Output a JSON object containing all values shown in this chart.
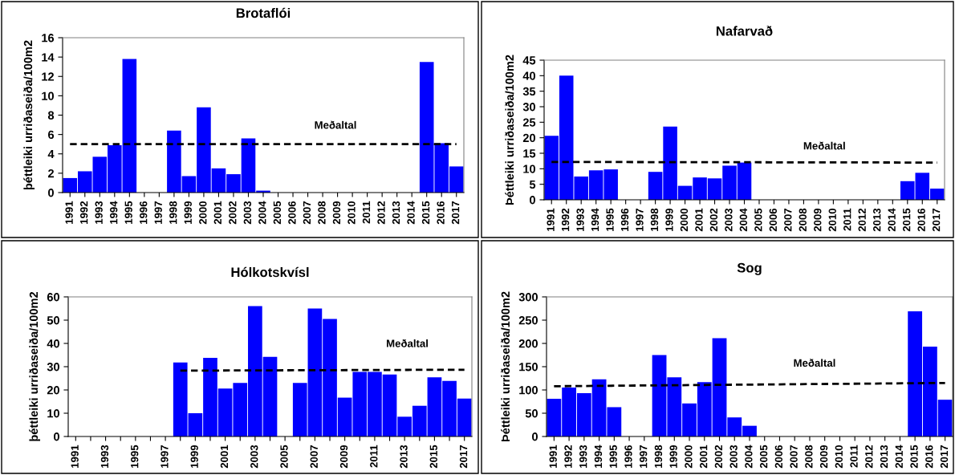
{
  "chart_data": [
    {
      "type": "bar",
      "title": "Brotaflói",
      "ylabel": "þéttleiki urriðaseiða/100m2",
      "categories": [
        "1991",
        "1992",
        "1993",
        "1994",
        "1995",
        "1996",
        "1997",
        "1998",
        "1999",
        "2000",
        "2001",
        "2002",
        "2003",
        "2004",
        "2005",
        "2006",
        "2007",
        "2008",
        "2009",
        "2010",
        "2011",
        "2012",
        "2013",
        "2014",
        "2015",
        "2016",
        "2017"
      ],
      "series": [
        {
          "color": "#0000ff",
          "values": [
            1.5,
            2.2,
            3.7,
            4.9,
            13.8,
            null,
            null,
            6.4,
            1.7,
            8.8,
            2.5,
            1.9,
            5.6,
            0.2,
            null,
            null,
            null,
            null,
            null,
            null,
            null,
            null,
            null,
            null,
            13.5,
            5.1,
            2.7
          ]
        },
        {
          "type": "line",
          "color": "#000000",
          "line_style": "dashed",
          "values": [
            5,
            null,
            null,
            null,
            null,
            null,
            null,
            null,
            null,
            null,
            null,
            null,
            null,
            null,
            null,
            null,
            null,
            null,
            null,
            null,
            null,
            null,
            null,
            null,
            null,
            null,
            5
          ]
        }
      ],
      "ylim": [
        0,
        16
      ],
      "yticks": [
        0,
        2,
        4,
        6,
        8,
        10,
        12,
        14,
        16
      ],
      "grid": false,
      "annotations": [
        "Meðaltal"
      ]
    },
    {
      "type": "bar",
      "title": "Nafarvað",
      "ylabel": "Þéttleiki urriðaseiða/100m2",
      "categories": [
        "1991",
        "1992",
        "1993",
        "1994",
        "1995",
        "1996",
        "1997",
        "1998",
        "1999",
        "2000",
        "2001",
        "2002",
        "2003",
        "2004",
        "2005",
        "2006",
        "2007",
        "2008",
        "2009",
        "2010",
        "2011",
        "2012",
        "2013",
        "2014",
        "2015",
        "2016",
        "2017"
      ],
      "series": [
        {
          "color": "#0000ff",
          "values": [
            20.6,
            40,
            7.5,
            9.5,
            9.8,
            null,
            null,
            9,
            23.6,
            4.5,
            7.2,
            6.9,
            11,
            12,
            null,
            null,
            null,
            null,
            null,
            null,
            null,
            null,
            null,
            null,
            6,
            8.7,
            3.6
          ]
        },
        {
          "type": "line",
          "color": "#000000",
          "line_style": "dashed",
          "values": [
            12.2,
            null,
            null,
            null,
            null,
            null,
            null,
            null,
            null,
            null,
            null,
            null,
            null,
            null,
            null,
            null,
            null,
            null,
            null,
            null,
            null,
            null,
            null,
            null,
            null,
            null,
            12
          ]
        }
      ],
      "ylim": [
        0,
        45
      ],
      "yticks": [
        0,
        5,
        10,
        15,
        20,
        25,
        30,
        35,
        40,
        45
      ],
      "grid": false,
      "annotations": [
        "Meðaltal"
      ]
    },
    {
      "type": "bar",
      "title": "Hólkotskvísl",
      "ylabel": "þéttleiki urriðaseiða/100m2",
      "categories": [
        "1991",
        null,
        "1993",
        null,
        "1995",
        null,
        "1997",
        null,
        "1999",
        null,
        "2001",
        null,
        "2003",
        null,
        "2005",
        null,
        "2007",
        null,
        "2009",
        null,
        "2011",
        null,
        "2013",
        null,
        "2015",
        null,
        "2017"
      ],
      "series": [
        {
          "color": "#0000ff",
          "values": [
            null,
            null,
            null,
            null,
            null,
            null,
            null,
            31.8,
            10,
            33.8,
            20.6,
            23,
            56,
            34.2,
            null,
            23,
            55,
            50.5,
            16.7,
            27.8,
            27.8,
            26.6,
            8.5,
            13.2,
            25.4,
            23.9,
            16.3
          ]
        },
        {
          "type": "line",
          "color": "#000000",
          "line_style": "dashed",
          "values": [
            null,
            null,
            null,
            null,
            null,
            null,
            null,
            28.3,
            null,
            null,
            null,
            null,
            null,
            null,
            null,
            null,
            null,
            null,
            null,
            null,
            null,
            null,
            null,
            null,
            null,
            null,
            28.7
          ]
        }
      ],
      "ylim": [
        0,
        60
      ],
      "yticks": [
        0,
        10,
        20,
        30,
        40,
        50,
        60
      ],
      "grid": false,
      "annotations": [
        "Meðaltal"
      ]
    },
    {
      "type": "bar",
      "title": "Sog",
      "ylabel": "Þéttleiki urriðaseiða/100m2",
      "categories": [
        "1991",
        "1992",
        "1993",
        "1994",
        "1995",
        "1996",
        "1997",
        "1998",
        "1999",
        "2000",
        "2001",
        "2002",
        "2003",
        "2004",
        "2005",
        "2006",
        "2007",
        "2008",
        "2009",
        "2010",
        "2011",
        "2012",
        "2013",
        "2014",
        "2015",
        "2016",
        "2017"
      ],
      "series": [
        {
          "color": "#0000ff",
          "values": [
            81,
            105,
            93,
            123,
            63,
            null,
            null,
            175,
            127,
            71,
            117,
            211,
            41,
            23,
            null,
            null,
            null,
            null,
            null,
            null,
            null,
            null,
            null,
            null,
            269,
            193,
            79
          ]
        },
        {
          "type": "line",
          "color": "#000000",
          "line_style": "dashed",
          "values": [
            108,
            null,
            null,
            null,
            null,
            null,
            null,
            null,
            null,
            null,
            null,
            null,
            null,
            null,
            null,
            null,
            null,
            null,
            null,
            null,
            null,
            null,
            null,
            null,
            null,
            null,
            115
          ]
        }
      ],
      "ylim": [
        0,
        300
      ],
      "yticks": [
        0,
        50,
        100,
        150,
        200,
        250,
        300
      ],
      "grid": false,
      "annotations": [
        "Meðaltal"
      ]
    }
  ]
}
